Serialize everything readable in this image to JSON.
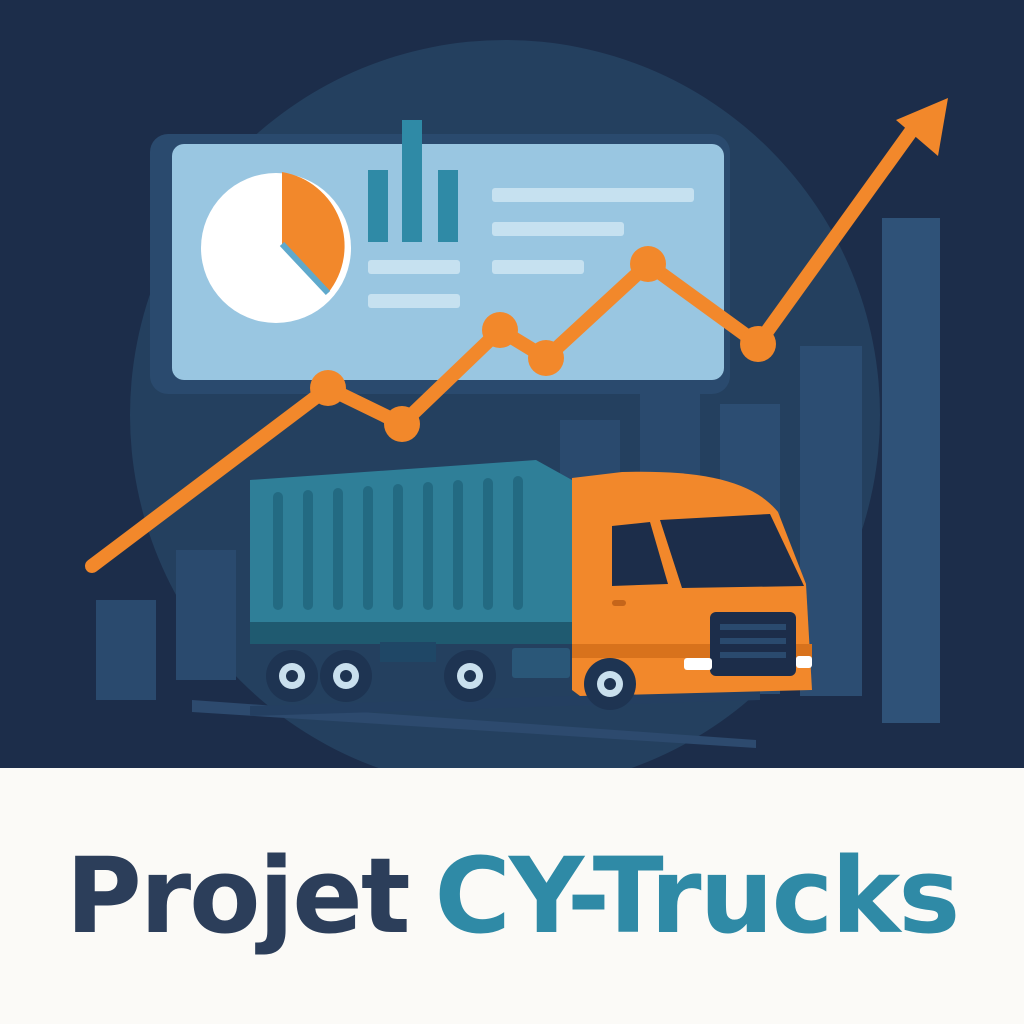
{
  "title": {
    "prefix": "Projet",
    "name": "CY-Trucks"
  },
  "colors": {
    "background_dark": "#1c2d4a",
    "accent_orange": "#f2882b",
    "teal": "#2f8aa6",
    "dashboard_panel": "#99c6e1",
    "title_text": "#2c3e5a",
    "caption_background": "#fbfaf7"
  },
  "icons": [
    "pie-chart-icon",
    "bar-chart-icon",
    "trend-arrow-icon",
    "truck-icon"
  ]
}
